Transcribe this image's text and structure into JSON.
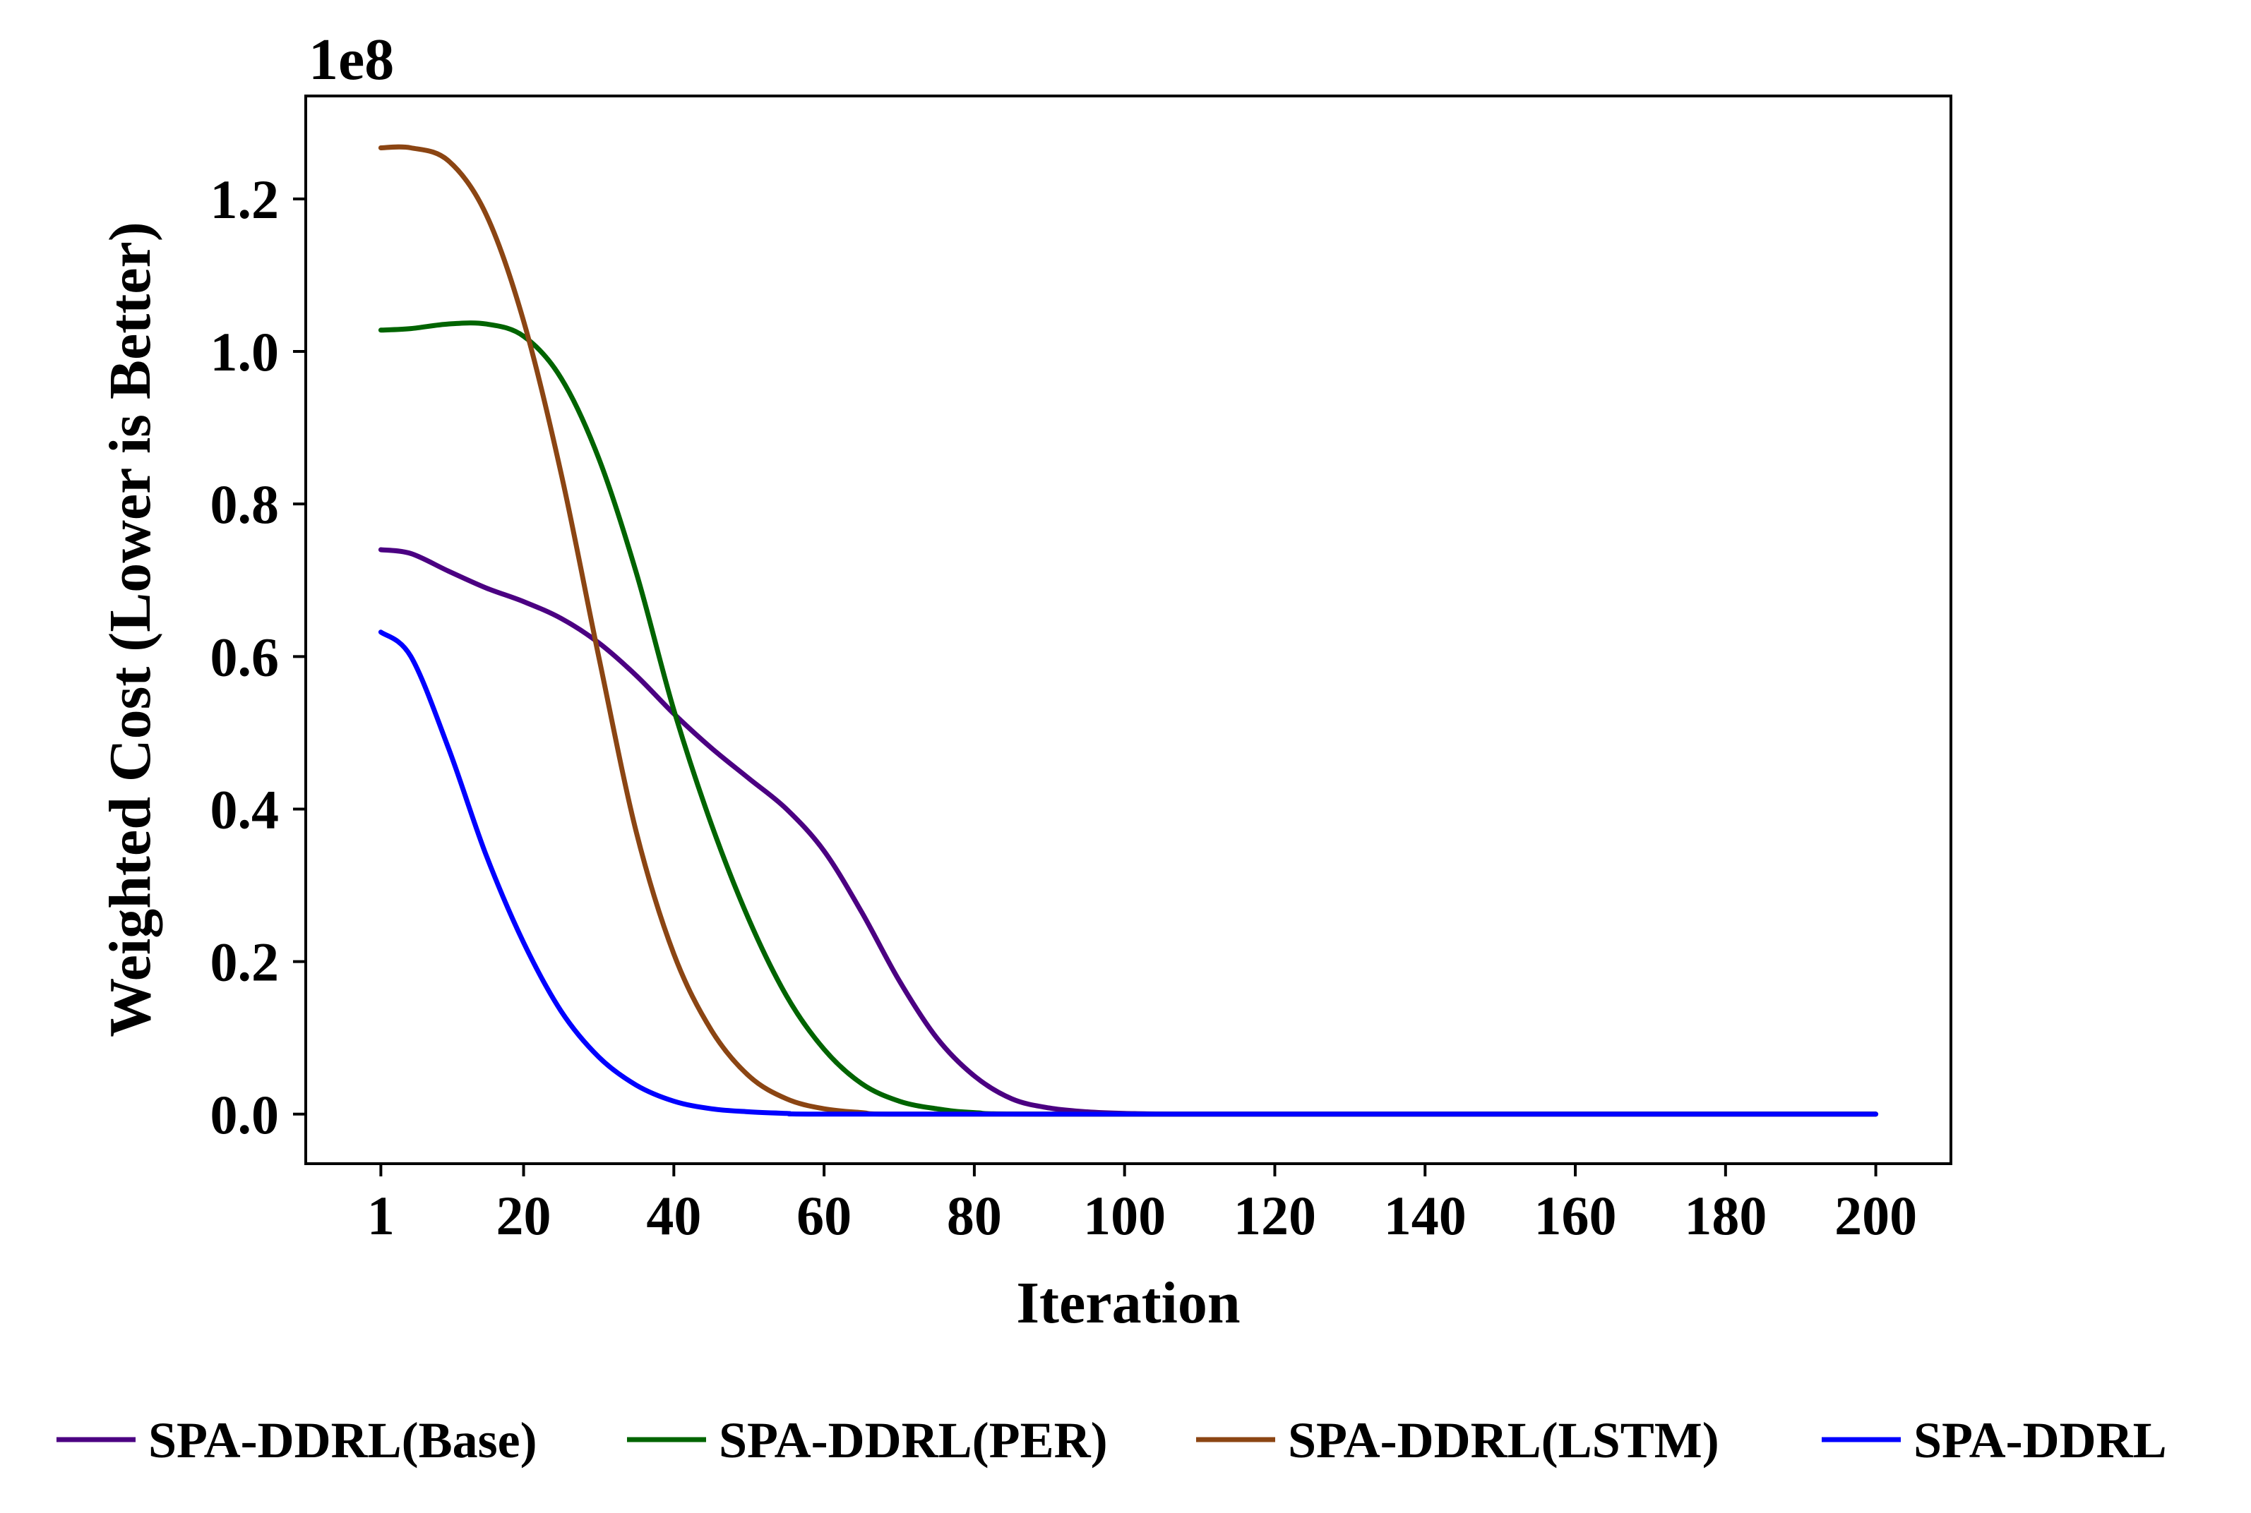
{
  "chart_data": {
    "type": "line",
    "xlabel": "Iteration",
    "ylabel": "Weighted Cost (Lower is Better)",
    "y_offset_label": "1e8",
    "xlim": [
      -9,
      210
    ],
    "ylim": [
      -0.065,
      1.335
    ],
    "x_ticks": [
      1,
      20,
      40,
      60,
      80,
      100,
      120,
      140,
      160,
      180,
      200
    ],
    "y_ticks": [
      0.0,
      0.2,
      0.4,
      0.6,
      0.8,
      1.0,
      1.2
    ],
    "y_tick_labels": [
      "0.0",
      "0.2",
      "0.4",
      "0.6",
      "0.8",
      "1.0",
      "1.2"
    ],
    "grid": false,
    "legend_position": "bottom",
    "series": [
      {
        "name": "SPA-DDRL(Base)",
        "color": "#4b0082",
        "points": [
          [
            1,
            0.74
          ],
          [
            5,
            0.735
          ],
          [
            10,
            0.712
          ],
          [
            15,
            0.69
          ],
          [
            20,
            0.672
          ],
          [
            25,
            0.65
          ],
          [
            30,
            0.618
          ],
          [
            35,
            0.575
          ],
          [
            40,
            0.525
          ],
          [
            45,
            0.48
          ],
          [
            50,
            0.44
          ],
          [
            55,
            0.4
          ],
          [
            60,
            0.345
          ],
          [
            65,
            0.265
          ],
          [
            70,
            0.175
          ],
          [
            75,
            0.1
          ],
          [
            80,
            0.05
          ],
          [
            85,
            0.02
          ],
          [
            90,
            0.008
          ],
          [
            95,
            0.003
          ],
          [
            100,
            0.001
          ],
          [
            110,
            0.0
          ],
          [
            150,
            0.0
          ],
          [
            200,
            0.0
          ]
        ]
      },
      {
        "name": "SPA-DDRL(PER)",
        "color": "#006400",
        "points": [
          [
            1,
            1.028
          ],
          [
            5,
            1.03
          ],
          [
            10,
            1.036
          ],
          [
            15,
            1.036
          ],
          [
            20,
            1.02
          ],
          [
            25,
            0.965
          ],
          [
            30,
            0.86
          ],
          [
            35,
            0.71
          ],
          [
            40,
            0.53
          ],
          [
            45,
            0.38
          ],
          [
            50,
            0.255
          ],
          [
            55,
            0.155
          ],
          [
            60,
            0.085
          ],
          [
            65,
            0.04
          ],
          [
            70,
            0.017
          ],
          [
            75,
            0.007
          ],
          [
            80,
            0.002
          ],
          [
            90,
            0.0
          ],
          [
            150,
            0.0
          ],
          [
            200,
            0.0
          ]
        ]
      },
      {
        "name": "SPA-DDRL(LSTM)",
        "color": "#8b4513",
        "points": [
          [
            1,
            1.267
          ],
          [
            5,
            1.267
          ],
          [
            10,
            1.25
          ],
          [
            15,
            1.18
          ],
          [
            20,
            1.04
          ],
          [
            25,
            0.84
          ],
          [
            30,
            0.6
          ],
          [
            35,
            0.37
          ],
          [
            40,
            0.21
          ],
          [
            45,
            0.11
          ],
          [
            50,
            0.05
          ],
          [
            55,
            0.02
          ],
          [
            60,
            0.007
          ],
          [
            65,
            0.002
          ],
          [
            70,
            0.0
          ],
          [
            100,
            0.0
          ],
          [
            150,
            0.0
          ],
          [
            200,
            0.0
          ]
        ]
      },
      {
        "name": "SPA-DDRL",
        "color": "#0000ff",
        "points": [
          [
            1,
            0.632
          ],
          [
            5,
            0.6
          ],
          [
            10,
            0.48
          ],
          [
            15,
            0.34
          ],
          [
            20,
            0.225
          ],
          [
            25,
            0.135
          ],
          [
            30,
            0.075
          ],
          [
            35,
            0.038
          ],
          [
            40,
            0.017
          ],
          [
            45,
            0.007
          ],
          [
            50,
            0.003
          ],
          [
            55,
            0.001
          ],
          [
            60,
            0.0
          ],
          [
            100,
            0.0
          ],
          [
            150,
            0.0
          ],
          [
            200,
            0.0
          ]
        ]
      }
    ]
  }
}
